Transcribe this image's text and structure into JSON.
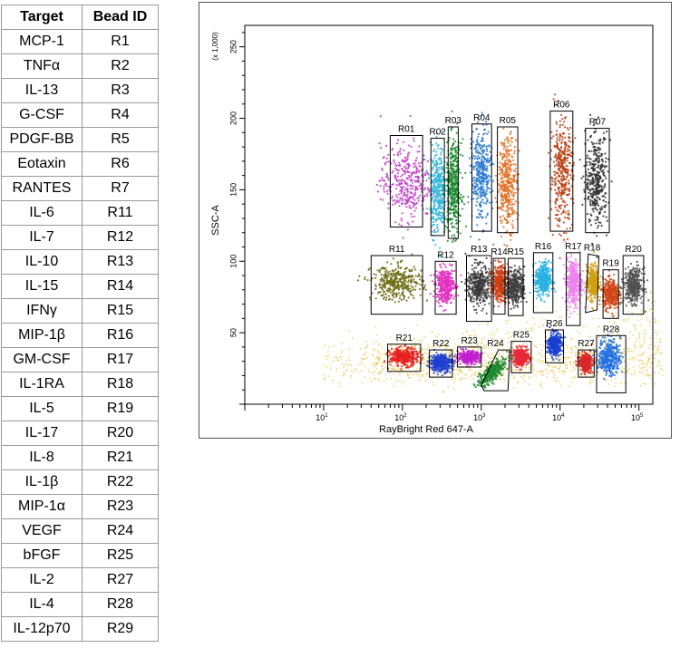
{
  "table": {
    "headers": [
      "Target",
      "Bead ID"
    ],
    "rows": [
      [
        "MCP-1",
        "R1"
      ],
      [
        "TNFα",
        "R2"
      ],
      [
        "IL-13",
        "R3"
      ],
      [
        "G-CSF",
        "R4"
      ],
      [
        "PDGF-BB",
        "R5"
      ],
      [
        "Eotaxin",
        "R6"
      ],
      [
        "RANTES",
        "R7"
      ],
      [
        "IL-6",
        "R11"
      ],
      [
        "IL-7",
        "R12"
      ],
      [
        "IL-10",
        "R13"
      ],
      [
        "IL-15",
        "R14"
      ],
      [
        "IFNγ",
        "R15"
      ],
      [
        "MIP-1β",
        "R16"
      ],
      [
        "GM-CSF",
        "R17"
      ],
      [
        "IL-1RA",
        "R18"
      ],
      [
        "IL-5",
        "R19"
      ],
      [
        "IL-17",
        "R20"
      ],
      [
        "IL-8",
        "R21"
      ],
      [
        "IL-1β",
        "R22"
      ],
      [
        "MIP-1α",
        "R23"
      ],
      [
        "VEGF",
        "R24"
      ],
      [
        "bFGF",
        "R25"
      ],
      [
        "IL-2",
        "R27"
      ],
      [
        "IL-4",
        "R28"
      ],
      [
        "IL-12p70",
        "R29"
      ]
    ]
  },
  "chart_data": {
    "type": "scatter",
    "xlabel": "RayBright Red 647-A",
    "ylabel": "SSC-A",
    "y_multiplier_label": "(x 1,000)",
    "x_scale": "log",
    "xlim": [
      1,
      150000
    ],
    "ylim": [
      0,
      265
    ],
    "x_ticks": [
      {
        "value": 10,
        "base": "10",
        "exp": "1"
      },
      {
        "value": 100,
        "base": "10",
        "exp": "2"
      },
      {
        "value": 1000,
        "base": "10",
        "exp": "3"
      },
      {
        "value": 10000,
        "base": "10",
        "exp": "4"
      },
      {
        "value": 100000,
        "base": "10",
        "exp": "5"
      }
    ],
    "y_ticks": [
      {
        "value": 50,
        "label": "50"
      },
      {
        "value": 100,
        "label": "100"
      },
      {
        "value": 150,
        "label": "150"
      },
      {
        "value": 200,
        "label": "200"
      },
      {
        "value": 250,
        "label": "250"
      }
    ],
    "grid": false,
    "regions": [
      {
        "name": "R01",
        "color": "#c040c8",
        "x0": 70,
        "x1": 180,
        "y0": 124,
        "y1": 188,
        "cx": 110,
        "cy": 155,
        "sx": 0.16,
        "sy": 13
      },
      {
        "name": "R02",
        "color": "#30b8d8",
        "x0": 230,
        "x1": 340,
        "y0": 118,
        "y1": 186,
        "cx": 285,
        "cy": 150,
        "sx": 0.05,
        "sy": 15
      },
      {
        "name": "R03",
        "color": "#1a8a2a",
        "x0": 380,
        "x1": 510,
        "y0": 116,
        "y1": 194,
        "cx": 445,
        "cy": 152,
        "sx": 0.05,
        "sy": 16
      },
      {
        "name": "R04",
        "color": "#2a7ad0",
        "x0": 760,
        "x1": 1350,
        "y0": 121,
        "y1": 196,
        "cx": 1000,
        "cy": 160,
        "sx": 0.06,
        "sy": 16
      },
      {
        "name": "R05",
        "color": "#e07020",
        "x0": 1600,
        "x1": 2900,
        "y0": 120,
        "y1": 194,
        "cx": 2150,
        "cy": 155,
        "sx": 0.06,
        "sy": 16
      },
      {
        "name": "R06",
        "color": "#b84010",
        "x0": 7500,
        "x1": 14500,
        "y0": 121,
        "y1": 205,
        "cx": 10500,
        "cy": 162,
        "sx": 0.07,
        "sy": 18
      },
      {
        "name": "R07",
        "color": "#303030",
        "x0": 21000,
        "x1": 42000,
        "y0": 120,
        "y1": 193,
        "cx": 29000,
        "cy": 157,
        "sx": 0.07,
        "sy": 16
      },
      {
        "name": "R11",
        "color": "#6b6a10",
        "x0": 40,
        "x1": 180,
        "y0": 63,
        "y1": 104,
        "cx": 85,
        "cy": 85,
        "sx": 0.16,
        "sy": 6
      },
      {
        "name": "R12",
        "color": "#e030c0",
        "x0": 260,
        "x1": 480,
        "y0": 63,
        "y1": 100,
        "cx": 350,
        "cy": 83,
        "sx": 0.06,
        "sy": 6
      },
      {
        "name": "R13",
        "color": "#3a3a3a",
        "x0": 650,
        "x1": 1350,
        "y0": 58,
        "y1": 104,
        "cx": 920,
        "cy": 83,
        "sx": 0.07,
        "sy": 7
      },
      {
        "name": "R14",
        "color": "#d04010",
        "x0": 1420,
        "x1": 2000,
        "y0": 63,
        "y1": 102,
        "cx": 1700,
        "cy": 85,
        "sx": 0.05,
        "sy": 6
      },
      {
        "name": "R15",
        "color": "#404040",
        "x0": 2200,
        "x1": 3400,
        "y0": 62,
        "y1": 102,
        "cx": 2700,
        "cy": 82,
        "sx": 0.06,
        "sy": 6
      },
      {
        "name": "R16",
        "color": "#28b0e0",
        "x0": 4600,
        "x1": 8100,
        "y0": 64,
        "y1": 106,
        "cx": 6100,
        "cy": 87,
        "sx": 0.05,
        "sy": 6
      },
      {
        "name": "R17",
        "color": "#ee80ee",
        "x0": 12000,
        "x1": 18000,
        "y0": 55,
        "y1": 106,
        "cx": 14800,
        "cy": 85,
        "sx": 0.05,
        "sy": 8
      },
      {
        "name": "R18",
        "color": "#d0a010",
        "x0": 21000,
        "x1": 31000,
        "y0": 64,
        "y1": 105,
        "cx": 26000,
        "cy": 85,
        "sx": 0.04,
        "sy": 6
      },
      {
        "name": "R19",
        "color": "#d04818",
        "x0": 35000,
        "x1": 55000,
        "y0": 60,
        "y1": 94,
        "cx": 44000,
        "cy": 77,
        "sx": 0.05,
        "sy": 5
      },
      {
        "name": "R20",
        "color": "#505050",
        "x0": 63000,
        "x1": 115000,
        "y0": 63,
        "y1": 104,
        "cx": 85000,
        "cy": 83,
        "sx": 0.06,
        "sy": 6
      },
      {
        "name": "R21",
        "color": "#e82020",
        "x0": 65,
        "x1": 170,
        "y0": 23,
        "y1": 42,
        "cx": 105,
        "cy": 33,
        "sx": 0.09,
        "sy": 3
      },
      {
        "name": "R22",
        "color": "#2040d0",
        "x0": 220,
        "x1": 430,
        "y0": 19,
        "y1": 38,
        "cx": 310,
        "cy": 29,
        "sx": 0.07,
        "sy": 3
      },
      {
        "name": "R23",
        "color": "#c020d0",
        "x0": 500,
        "x1": 1000,
        "y0": 26,
        "y1": 40,
        "cx": 700,
        "cy": 33,
        "sx": 0.07,
        "sy": 2
      },
      {
        "name": "R24",
        "color": "#208a30",
        "x0": 1000,
        "x1": 2300,
        "y0": 12,
        "y1": 38,
        "cx": 1350,
        "cy": 22,
        "sx": 0.08,
        "sy": 4
      },
      {
        "name": "R25",
        "color": "#e82838",
        "x0": 2400,
        "x1": 4300,
        "y0": 22,
        "y1": 44,
        "cx": 3200,
        "cy": 33,
        "sx": 0.05,
        "sy": 3
      },
      {
        "name": "R26",
        "color": "#1a40d0",
        "x0": 6500,
        "x1": 11000,
        "y0": 29,
        "y1": 52,
        "cx": 8500,
        "cy": 42,
        "sx": 0.04,
        "sy": 4
      },
      {
        "name": "R27",
        "color": "#d82828",
        "x0": 17000,
        "x1": 27000,
        "y0": 19,
        "y1": 38,
        "cx": 21000,
        "cy": 29,
        "sx": 0.04,
        "sy": 3
      },
      {
        "name": "R28",
        "color": "#2070e0",
        "x0": 29000,
        "x1": 68000,
        "y0": 8,
        "y1": 48,
        "cx": 42000,
        "cy": 33,
        "sx": 0.07,
        "sy": 6
      }
    ],
    "background_colors": [
      "#e8c840",
      "#f0c850"
    ]
  }
}
